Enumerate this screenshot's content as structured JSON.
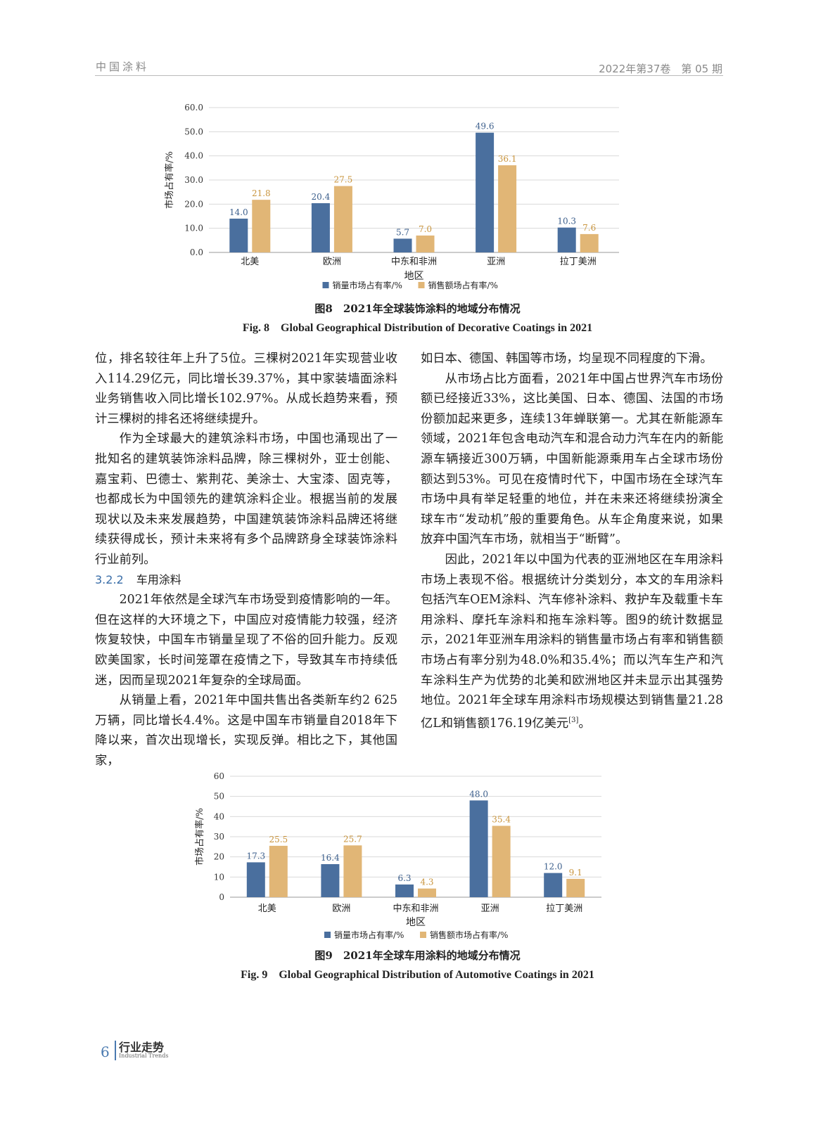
{
  "header": {
    "journal": "中国涂料",
    "issue": "2022年第37卷　第 05 期"
  },
  "chart_data": [
    {
      "type": "bar",
      "categories": [
        "北美",
        "欧洲",
        "中东和非洲",
        "亚洲",
        "拉丁美洲"
      ],
      "series": [
        {
          "name": "销量市场占有率/%",
          "values": [
            14.0,
            20.4,
            5.7,
            49.6,
            10.3
          ],
          "color": "#4a6f9e"
        },
        {
          "name": "销售额场占有率/%",
          "values": [
            21.8,
            27.5,
            7.0,
            36.1,
            7.6
          ],
          "color": "#e1b676"
        }
      ],
      "xlabel": "地区",
      "ylabel": "市场占有率/%",
      "ylim": [
        0,
        60
      ],
      "yticks": [
        "0.0",
        "10.0",
        "20.0",
        "30.0",
        "40.0",
        "50.0",
        "60.0"
      ],
      "grid": true,
      "legend": "bottom",
      "caption_cn": "图8　2021年全球装饰涂料的地域分布情况",
      "caption_en": "Fig. 8　Global Geographical Distribution of Decorative Coatings in 2021"
    },
    {
      "type": "bar",
      "categories": [
        "北美",
        "欧洲",
        "中东和非洲",
        "亚洲",
        "拉丁美洲"
      ],
      "series": [
        {
          "name": "销量市场占有率/%",
          "values": [
            17.3,
            16.4,
            6.3,
            48.0,
            12.0
          ],
          "color": "#4a6f9e"
        },
        {
          "name": "销售额市场占有率/%",
          "values": [
            25.5,
            25.7,
            4.3,
            35.4,
            9.1
          ],
          "color": "#e1b676"
        }
      ],
      "xlabel": "地区",
      "ylabel": "市场占有率/%",
      "ylim": [
        0,
        60
      ],
      "yticks": [
        "0",
        "10",
        "20",
        "30",
        "40",
        "50",
        "60"
      ],
      "grid": true,
      "legend": "bottom",
      "caption_cn": "图9　2021年全球车用涂料的地域分布情况",
      "caption_en": "Fig. 9　Global Geographical Distribution of Automotive Coatings in 2021"
    }
  ],
  "body": {
    "left": {
      "p1": "位，排名较往年上升了5位。三棵树2021年实现营业收入114.29亿元，同比增长39.37%，其中家装墙面涂料业务销售收入同比增长102.97%。从成长趋势来看，预计三棵树的排名还将继续提升。",
      "p2": "作为全球最大的建筑涂料市场，中国也涌现出了一批知名的建筑装饰涂料品牌，除三棵树外，亚士创能、嘉宝莉、巴德士、紫荆花、美涂士、大宝漆、固克等，也都成长为中国领先的建筑涂料企业。根据当前的发展现状以及未来发展趋势，中国建筑装饰涂料品牌还将继续获得成长，预计未来将有多个品牌跻身全球装饰涂料行业前列。",
      "section_num": "3.2.2",
      "section_title": "车用涂料",
      "p3": "2021年依然是全球汽车市场受到疫情影响的一年。但在这样的大环境之下，中国应对疫情能力较强，经济恢复较快，中国车市销量呈现了不俗的回升能力。反观欧美国家，长时间笼罩在疫情之下，导致其车市持续低迷，因而呈现2021年复杂的全球局面。",
      "p4": "从销量上看，2021年中国共售出各类新车约2 625万辆，同比增长4.4%。这是中国车市销量自2018年下降以来，首次出现增长，实现反弹。相比之下，其他国家，"
    },
    "right": {
      "p5": "如日本、德国、韩国等市场，均呈现不同程度的下滑。",
      "p6": "从市场占比方面看，2021年中国占世界汽车市场份额已经接近33%，这比美国、日本、德国、法国的市场份额加起来更多，连续13年蝉联第一。尤其在新能源车领域，2021年包含电动汽车和混合动力汽车在内的新能源车辆接近300万辆，中国新能源乘用车占全球市场份额达到53%。可见在疫情时代下，中国市场在全球汽车市场中具有举足轻重的地位，并在未来还将继续扮演全球车市“发动机”般的重要角色。从车企角度来说，如果放弃中国汽车市场，就相当于“断臂”。",
      "p7": "因此，2021年以中国为代表的亚洲地区在车用涂料市场上表现不俗。根据统计分类划分，本文的车用涂料包括汽车OEM涂料、汽车修补涂料、救护车及载重卡车用涂料、摩托车涂料和拖车涂料等。图9的统计数据显示，2021年亚洲车用涂料的销售量市场占有率和销售额市场占有率分别为48.0%和35.4%；而以汽车生产和汽车涂料生产为优势的北美和欧洲地区并未显示出其强势地位。2021年全球车用涂料市场规模达到销售量21.28亿L和销售额176.19亿美元",
      "p7_ref": "[3]",
      "p7_end": "。"
    }
  },
  "footer": {
    "page": "6",
    "section_cn": "行业走势",
    "section_en": "Industrial Trends"
  }
}
